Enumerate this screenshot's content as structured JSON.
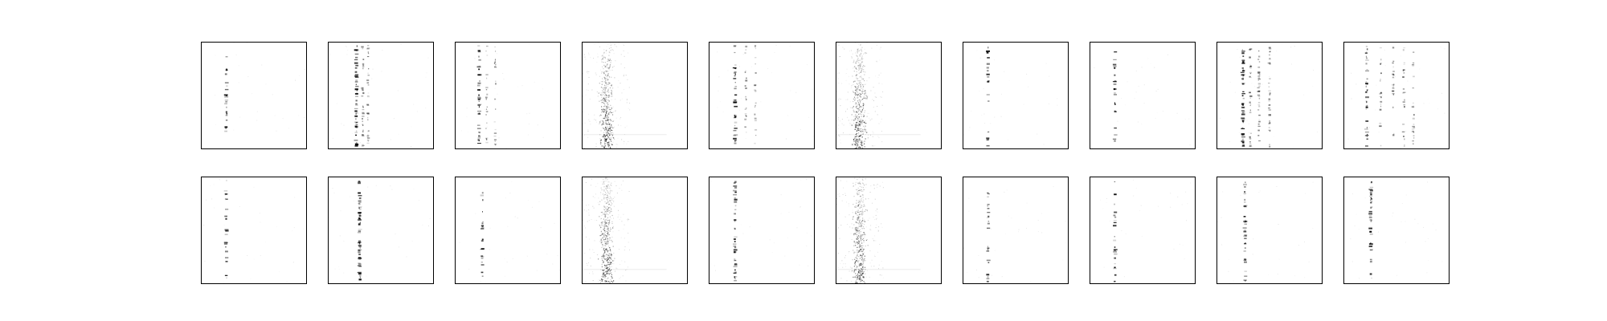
{
  "chart_data": {
    "type": "heatmap",
    "layout": {
      "rows": 2,
      "cols": 10
    },
    "colormap": "gray_r",
    "axes_visible": false,
    "panels": [
      {
        "row": 0,
        "col": 0,
        "pattern": "vertical-dotted-stripe",
        "stripe_x": [
          0.24
        ],
        "density": "low"
      },
      {
        "row": 0,
        "col": 1,
        "pattern": "vertical-dotted-stripe",
        "stripe_x": [
          0.27,
          0.33,
          0.38
        ],
        "density": "high"
      },
      {
        "row": 0,
        "col": 2,
        "pattern": "vertical-dotted-stripe",
        "stripe_x": [
          0.23,
          0.3,
          0.38
        ],
        "density": "medium"
      },
      {
        "row": 0,
        "col": 3,
        "pattern": "noisy-vertical-band",
        "stripe_x": [
          0.23
        ],
        "density": "high"
      },
      {
        "row": 0,
        "col": 4,
        "pattern": "vertical-dotted-stripe",
        "stripe_x": [
          0.25,
          0.35,
          0.44
        ],
        "density": "medium"
      },
      {
        "row": 0,
        "col": 5,
        "pattern": "noisy-vertical-band",
        "stripe_x": [
          0.22
        ],
        "density": "high"
      },
      {
        "row": 0,
        "col": 6,
        "pattern": "vertical-dotted-stripe",
        "stripe_x": [
          0.24
        ],
        "density": "low"
      },
      {
        "row": 0,
        "col": 7,
        "pattern": "vertical-dotted-stripe",
        "stripe_x": [
          0.24
        ],
        "density": "low"
      },
      {
        "row": 0,
        "col": 8,
        "pattern": "vertical-dotted-stripe",
        "stripe_x": [
          0.25,
          0.32,
          0.4,
          0.5
        ],
        "density": "high"
      },
      {
        "row": 0,
        "col": 9,
        "pattern": "vertical-dotted-stripe",
        "stripe_x": [
          0.22,
          0.35,
          0.47,
          0.57,
          0.66
        ],
        "density": "medium"
      },
      {
        "row": 1,
        "col": 0,
        "pattern": "vertical-dotted-stripe",
        "stripe_x": [
          0.24
        ],
        "density": "low"
      },
      {
        "row": 1,
        "col": 1,
        "pattern": "vertical-dotted-stripe",
        "stripe_x": [
          0.3
        ],
        "density": "high"
      },
      {
        "row": 1,
        "col": 2,
        "pattern": "vertical-dotted-stripe",
        "stripe_x": [
          0.26
        ],
        "density": "low"
      },
      {
        "row": 1,
        "col": 3,
        "pattern": "noisy-vertical-band",
        "stripe_x": [
          0.23
        ],
        "density": "high"
      },
      {
        "row": 1,
        "col": 4,
        "pattern": "vertical-dotted-stripe",
        "stripe_x": [
          0.25
        ],
        "density": "medium"
      },
      {
        "row": 1,
        "col": 5,
        "pattern": "noisy-vertical-band",
        "stripe_x": [
          0.22
        ],
        "density": "high"
      },
      {
        "row": 1,
        "col": 6,
        "pattern": "vertical-dotted-stripe",
        "stripe_x": [
          0.24
        ],
        "density": "low"
      },
      {
        "row": 1,
        "col": 7,
        "pattern": "vertical-dotted-stripe",
        "stripe_x": [
          0.24
        ],
        "density": "low"
      },
      {
        "row": 1,
        "col": 8,
        "pattern": "vertical-dotted-stripe",
        "stripe_x": [
          0.27
        ],
        "density": "medium"
      },
      {
        "row": 1,
        "col": 9,
        "pattern": "vertical-dotted-stripe",
        "stripe_x": [
          0.26
        ],
        "density": "medium"
      }
    ]
  },
  "colors": {
    "background": "#ffffff",
    "frame": "#000000",
    "mark": "#000000"
  }
}
